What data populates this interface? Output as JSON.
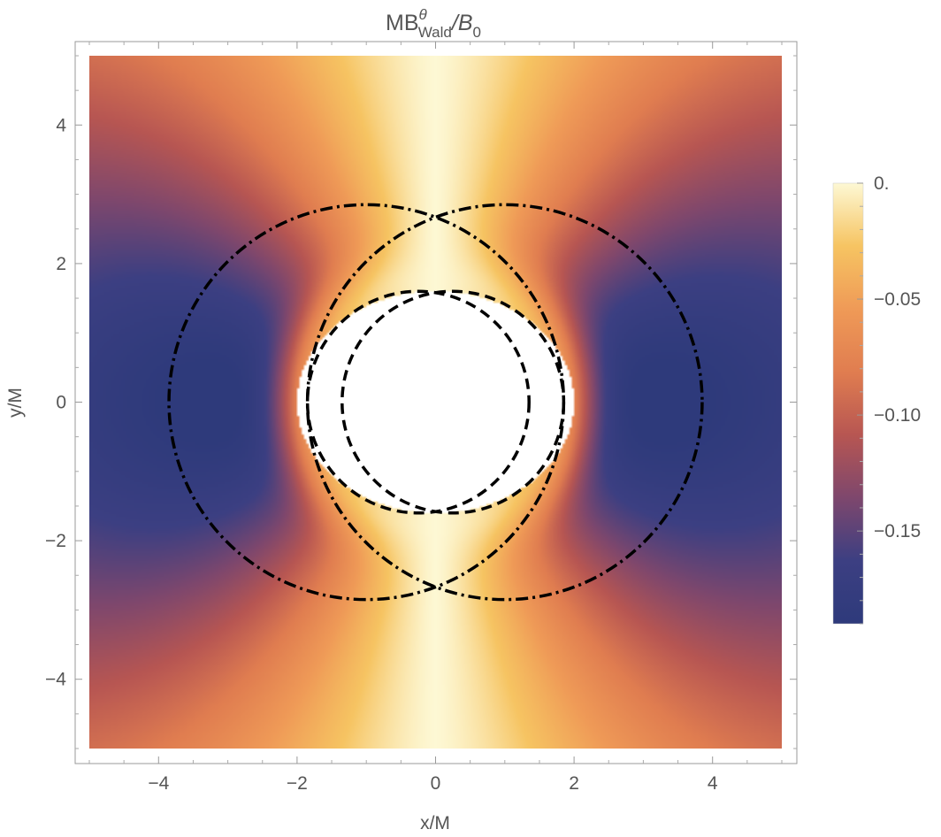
{
  "chart_data": {
    "type": "heatmap",
    "title": {
      "prefix": "MB",
      "superscript": "θ",
      "subscript": "Wald",
      "suffix": "/B",
      "suffix_subscript": "0"
    },
    "xlabel": "x/M",
    "ylabel": "y/M",
    "xlim": [
      -5,
      5
    ],
    "ylim": [
      -5,
      5
    ],
    "x_ticks": [
      -4,
      -2,
      0,
      2,
      4
    ],
    "y_ticks": [
      -4,
      -2,
      0,
      2,
      4
    ],
    "x_tick_labels": [
      "−4",
      "−2",
      "0",
      "2",
      "4"
    ],
    "y_tick_labels": [
      "−4",
      "−2",
      "0",
      "2",
      "4"
    ],
    "grid": false,
    "colorbar": {
      "min": -0.19,
      "max": 0.0,
      "ticks": [
        0.0,
        -0.05,
        -0.1,
        -0.15
      ],
      "tick_labels": [
        "0.",
        "−0.05",
        "−0.10",
        "−0.15"
      ],
      "placement": "right",
      "colors": [
        "#fdf8d4",
        "#f6c462",
        "#ef9a57",
        "#e07d50",
        "#b75652",
        "#7e476d",
        "#3c3f82",
        "#2e3a7b"
      ]
    },
    "field": {
      "extrema": [
        {
          "x": -3.1,
          "y": 0,
          "value": -0.19
        },
        {
          "x": 3.1,
          "y": 0,
          "value": -0.19
        }
      ],
      "axis_value_at_x0": 0.0
    },
    "regions": [
      {
        "kind": "masked-ellipse",
        "cx": 0,
        "cy": 0,
        "rx": 2.0,
        "ry": 1.6,
        "color": "#ffffff"
      }
    ],
    "curves": [
      {
        "style": "dash-dot",
        "kind": "circle",
        "cx": -1.0,
        "cy": 0,
        "r": 2.85
      },
      {
        "style": "dash-dot",
        "kind": "circle",
        "cx": 1.0,
        "cy": 0,
        "r": 2.85
      },
      {
        "style": "dashed",
        "kind": "circle",
        "cx": -0.25,
        "cy": 0,
        "r": 1.6
      },
      {
        "style": "dashed",
        "kind": "circle",
        "cx": 0.25,
        "cy": 0,
        "r": 1.6
      }
    ]
  }
}
